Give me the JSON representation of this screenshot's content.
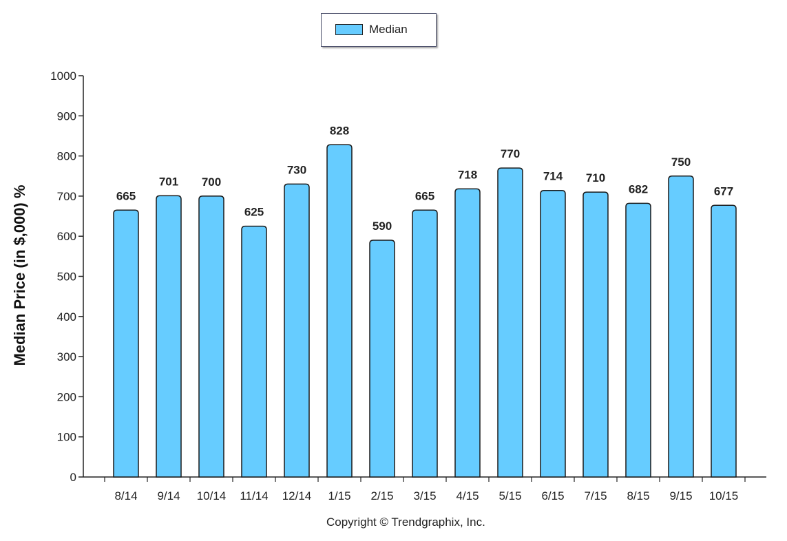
{
  "chart_data": {
    "type": "bar",
    "title": "",
    "xlabel": "",
    "ylabel": "Median Price (in $,000) %",
    "ylim": [
      0,
      1000
    ],
    "yticks": [
      0,
      100,
      200,
      300,
      400,
      500,
      600,
      700,
      800,
      900,
      1000
    ],
    "categories": [
      "8/14",
      "9/14",
      "10/14",
      "11/14",
      "12/14",
      "1/15",
      "2/15",
      "3/15",
      "4/15",
      "5/15",
      "6/15",
      "7/15",
      "8/15",
      "9/15",
      "10/15"
    ],
    "series": [
      {
        "name": "Median",
        "color": "#66ccff",
        "values": [
          665,
          701,
          700,
          625,
          730,
          828,
          590,
          665,
          718,
          770,
          714,
          710,
          682,
          750,
          677
        ]
      }
    ],
    "legend": {
      "position": "top-center",
      "entries": [
        "Median"
      ]
    },
    "grid": false,
    "data_labels": true
  },
  "footer": {
    "copyright": "Copyright © Trendgraphix, Inc."
  }
}
